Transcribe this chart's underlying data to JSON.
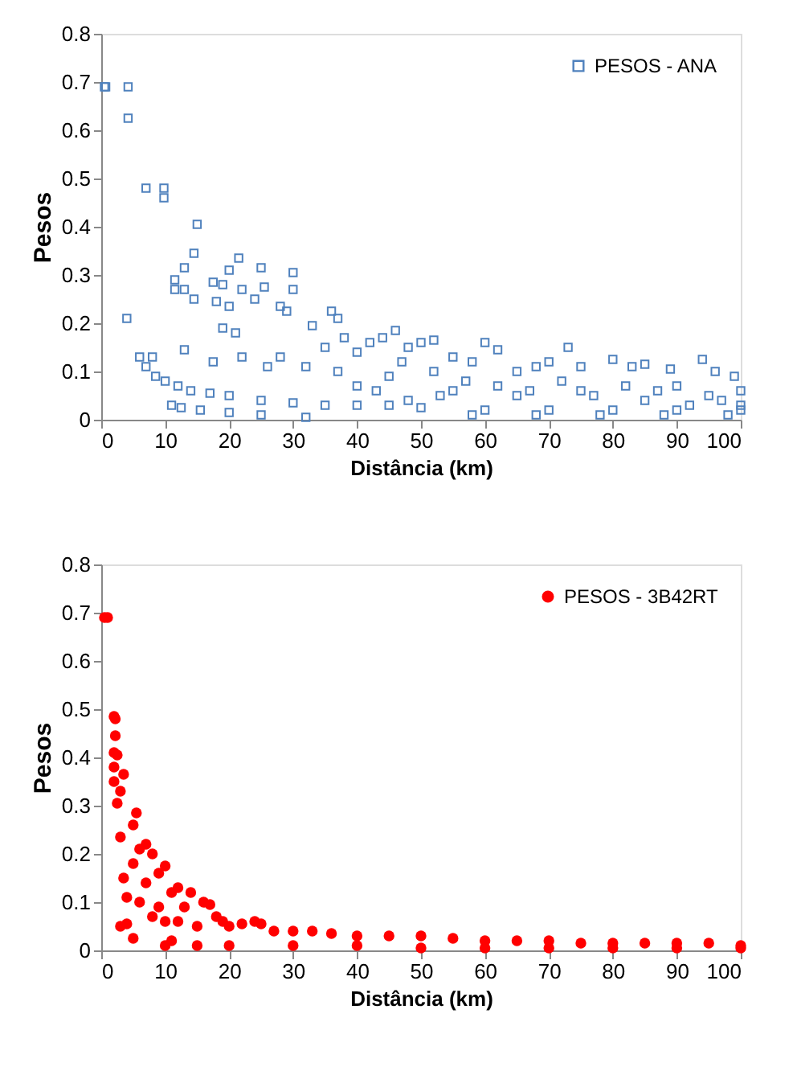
{
  "chart_data": [
    {
      "type": "scatter",
      "xlabel": "Distância (km)",
      "ylabel": "Pesos",
      "xlim": [
        0,
        100
      ],
      "xticks": [
        0,
        10,
        20,
        30,
        40,
        50,
        60,
        70,
        80,
        90,
        100
      ],
      "ylim": [
        0,
        0.8
      ],
      "yticks": [
        0,
        0.1,
        0.2,
        0.3,
        0.4,
        0.5,
        0.6,
        0.7,
        0.8
      ],
      "grid": false,
      "legend": "top right",
      "marker": "square",
      "series": [
        {
          "name": "PESOS - ANA",
          "color": "#4f81bd",
          "x": [
            0.5,
            0.7,
            4.2,
            4.2,
            4,
            7,
            9.8,
            9.8,
            15,
            14.5,
            13,
            11.5,
            11.5,
            13,
            14.5,
            17.5,
            19,
            20,
            21.5,
            25,
            30,
            30,
            25.5,
            28,
            29,
            22,
            20,
            18,
            24,
            19,
            21,
            22,
            17.5,
            13,
            6,
            8,
            7,
            8.5,
            10,
            12,
            14,
            17,
            20,
            25,
            30,
            35,
            40,
            45,
            50,
            60,
            70,
            80,
            90,
            100,
            11,
            12.5,
            15.5,
            20,
            25,
            32,
            33,
            36,
            37,
            35,
            38,
            40,
            42,
            44,
            46,
            48,
            50,
            52,
            55,
            58,
            60,
            62,
            65,
            68,
            70,
            73,
            75,
            80,
            83,
            85,
            89,
            94,
            96,
            99,
            100,
            100,
            95,
            90,
            85,
            75,
            65,
            55,
            45,
            40,
            37,
            32,
            28,
            26,
            47,
            52,
            57,
            62,
            67,
            72,
            77,
            82,
            87,
            92,
            97,
            58,
            68,
            78,
            88,
            98,
            43,
            48,
            53
          ],
          "values": [
            0.69,
            0.69,
            0.69,
            0.625,
            0.21,
            0.48,
            0.48,
            0.46,
            0.405,
            0.345,
            0.315,
            0.29,
            0.27,
            0.27,
            0.25,
            0.285,
            0.28,
            0.31,
            0.335,
            0.315,
            0.305,
            0.27,
            0.275,
            0.235,
            0.225,
            0.27,
            0.235,
            0.245,
            0.25,
            0.19,
            0.18,
            0.13,
            0.12,
            0.145,
            0.13,
            0.13,
            0.11,
            0.09,
            0.08,
            0.07,
            0.06,
            0.055,
            0.05,
            0.04,
            0.035,
            0.03,
            0.03,
            0.03,
            0.025,
            0.02,
            0.02,
            0.02,
            0.02,
            0.02,
            0.03,
            0.025,
            0.02,
            0.015,
            0.01,
            0.005,
            0.195,
            0.225,
            0.21,
            0.15,
            0.17,
            0.14,
            0.16,
            0.17,
            0.185,
            0.15,
            0.16,
            0.165,
            0.13,
            0.12,
            0.16,
            0.145,
            0.1,
            0.11,
            0.12,
            0.15,
            0.11,
            0.125,
            0.11,
            0.115,
            0.105,
            0.125,
            0.1,
            0.09,
            0.06,
            0.03,
            0.05,
            0.07,
            0.04,
            0.06,
            0.05,
            0.06,
            0.09,
            0.07,
            0.1,
            0.11,
            0.13,
            0.11,
            0.12,
            0.1,
            0.08,
            0.07,
            0.06,
            0.08,
            0.05,
            0.07,
            0.06,
            0.03,
            0.04,
            0.01,
            0.01,
            0.01,
            0.01,
            0.01,
            0.06,
            0.04,
            0.05
          ]
        }
      ]
    },
    {
      "type": "scatter",
      "xlabel": "Distância (km)",
      "ylabel": "Pesos",
      "xlim": [
        0,
        100
      ],
      "xticks": [
        0,
        10,
        20,
        30,
        40,
        50,
        60,
        70,
        80,
        90,
        100
      ],
      "ylim": [
        0,
        0.8
      ],
      "yticks": [
        0,
        0.1,
        0.2,
        0.3,
        0.4,
        0.5,
        0.6,
        0.7,
        0.8
      ],
      "grid": false,
      "legend": "top right",
      "marker": "circle",
      "series": [
        {
          "name": "PESOS - 3B42RT",
          "color": "#ff0000",
          "x": [
            0.5,
            1,
            2,
            2.2,
            2.2,
            2,
            2.5,
            2,
            2,
            3.5,
            3,
            2.5,
            3,
            3.5,
            4,
            3,
            4,
            5,
            5,
            5.5,
            5,
            6,
            7,
            8,
            6,
            7,
            8,
            9,
            10,
            9,
            10,
            11,
            12,
            11,
            12,
            13,
            14,
            15,
            16,
            17,
            18,
            19,
            20,
            22,
            24,
            25,
            27,
            30,
            33,
            36,
            40,
            45,
            50,
            55,
            60,
            65,
            70,
            75,
            80,
            85,
            90,
            95,
            100,
            100,
            90,
            80,
            70,
            60,
            50,
            40,
            30,
            20,
            15,
            10
          ],
          "values": [
            0.69,
            0.69,
            0.485,
            0.48,
            0.445,
            0.41,
            0.405,
            0.38,
            0.35,
            0.365,
            0.33,
            0.305,
            0.235,
            0.15,
            0.11,
            0.05,
            0.055,
            0.025,
            0.26,
            0.285,
            0.18,
            0.21,
            0.22,
            0.2,
            0.1,
            0.14,
            0.07,
            0.16,
            0.175,
            0.09,
            0.06,
            0.12,
            0.13,
            0.02,
            0.06,
            0.09,
            0.12,
            0.05,
            0.1,
            0.095,
            0.07,
            0.06,
            0.05,
            0.055,
            0.06,
            0.055,
            0.04,
            0.04,
            0.04,
            0.035,
            0.03,
            0.03,
            0.03,
            0.025,
            0.02,
            0.02,
            0.02,
            0.015,
            0.015,
            0.015,
            0.015,
            0.015,
            0.01,
            0.005,
            0.005,
            0.005,
            0.005,
            0.005,
            0.005,
            0.01,
            0.01,
            0.01,
            0.01,
            0.01
          ]
        }
      ]
    }
  ]
}
